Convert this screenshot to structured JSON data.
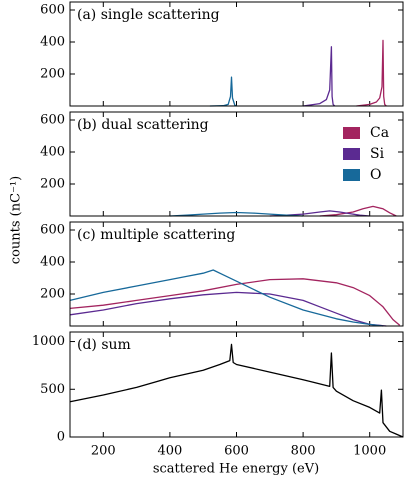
{
  "figure": {
    "ylabel": "counts (nC⁻¹)",
    "xlabel": "scattered He energy (eV)"
  },
  "chart_data": [
    {
      "type": "line",
      "annotation": "(a) single scattering",
      "xlim": [
        100,
        1100
      ],
      "xticks": [
        200,
        400,
        600,
        800,
        1000
      ],
      "ylim": [
        0,
        650
      ],
      "yticks": [
        200,
        400,
        600
      ],
      "series": [
        {
          "color": "#17699a",
          "x": [
            520,
            560,
            575,
            582,
            585,
            588,
            595,
            600
          ],
          "values": [
            0,
            2,
            10,
            60,
            180,
            50,
            5,
            0
          ]
        },
        {
          "color": "#5b2a91",
          "x": [
            800,
            850,
            870,
            880,
            885,
            887,
            890,
            895
          ],
          "values": [
            0,
            15,
            40,
            100,
            370,
            60,
            10,
            0
          ]
        },
        {
          "color": "#a3245f",
          "x": [
            960,
            1000,
            1020,
            1030,
            1037,
            1040,
            1042,
            1045,
            1050
          ],
          "values": [
            0,
            10,
            25,
            50,
            120,
            410,
            60,
            10,
            0
          ]
        }
      ]
    },
    {
      "type": "line",
      "annotation": "(b) dual scattering",
      "xlim": [
        100,
        1100
      ],
      "xticks": [
        200,
        400,
        600,
        800,
        1000
      ],
      "ylim": [
        0,
        650
      ],
      "yticks": [
        200,
        400,
        600
      ],
      "legend": "upper right",
      "series": [
        {
          "name": "Ca",
          "color": "#a3245f",
          "x": [
            850,
            900,
            950,
            980,
            1010,
            1040,
            1060,
            1080
          ],
          "values": [
            0,
            8,
            25,
            45,
            60,
            45,
            20,
            0
          ]
        },
        {
          "name": "Si",
          "color": "#5b2a91",
          "x": [
            700,
            750,
            800,
            850,
            880,
            910,
            940,
            970,
            1000
          ],
          "values": [
            0,
            5,
            12,
            25,
            32,
            25,
            15,
            5,
            0
          ]
        },
        {
          "name": "O",
          "color": "#17699a",
          "x": [
            400,
            450,
            500,
            550,
            600,
            650,
            700,
            750,
            800
          ],
          "values": [
            0,
            5,
            12,
            18,
            22,
            18,
            12,
            5,
            0
          ]
        }
      ]
    },
    {
      "type": "line",
      "annotation": "(c) multiple scattering",
      "xlim": [
        100,
        1100
      ],
      "xticks": [
        200,
        400,
        600,
        800,
        1000
      ],
      "ylim": [
        0,
        650
      ],
      "yticks": [
        200,
        400,
        600
      ],
      "series": [
        {
          "color": "#a3245f",
          "x": [
            100,
            200,
            300,
            400,
            500,
            600,
            700,
            800,
            900,
            950,
            1000,
            1040,
            1070,
            1090
          ],
          "values": [
            110,
            130,
            160,
            190,
            220,
            260,
            290,
            295,
            270,
            240,
            190,
            120,
            40,
            5
          ]
        },
        {
          "color": "#5b2a91",
          "x": [
            100,
            200,
            300,
            400,
            500,
            600,
            700,
            800,
            850,
            900,
            950,
            1000,
            1050
          ],
          "values": [
            70,
            100,
            140,
            170,
            195,
            210,
            200,
            160,
            120,
            80,
            40,
            10,
            0
          ]
        },
        {
          "color": "#17699a",
          "x": [
            100,
            200,
            300,
            400,
            450,
            500,
            530,
            560,
            600,
            700,
            800,
            900,
            950,
            1000,
            1040
          ],
          "values": [
            160,
            210,
            250,
            290,
            310,
            330,
            350,
            320,
            280,
            180,
            100,
            45,
            25,
            10,
            0
          ]
        }
      ]
    },
    {
      "type": "line",
      "annotation": "(d) sum",
      "xlim": [
        100,
        1100
      ],
      "xticks": [
        200,
        400,
        600,
        800,
        1000
      ],
      "ylim": [
        0,
        1100
      ],
      "yticks": [
        0,
        500,
        1000
      ],
      "series": [
        {
          "color": "#000000",
          "x": [
            100,
            200,
            300,
            400,
            500,
            550,
            580,
            585,
            590,
            600,
            700,
            800,
            880,
            885,
            890,
            900,
            950,
            1000,
            1030,
            1035,
            1040,
            1060,
            1080,
            1100
          ],
          "values": [
            370,
            440,
            520,
            620,
            700,
            760,
            800,
            970,
            780,
            760,
            680,
            600,
            530,
            880,
            520,
            480,
            380,
            310,
            250,
            490,
            150,
            60,
            30,
            0
          ]
        }
      ]
    }
  ]
}
